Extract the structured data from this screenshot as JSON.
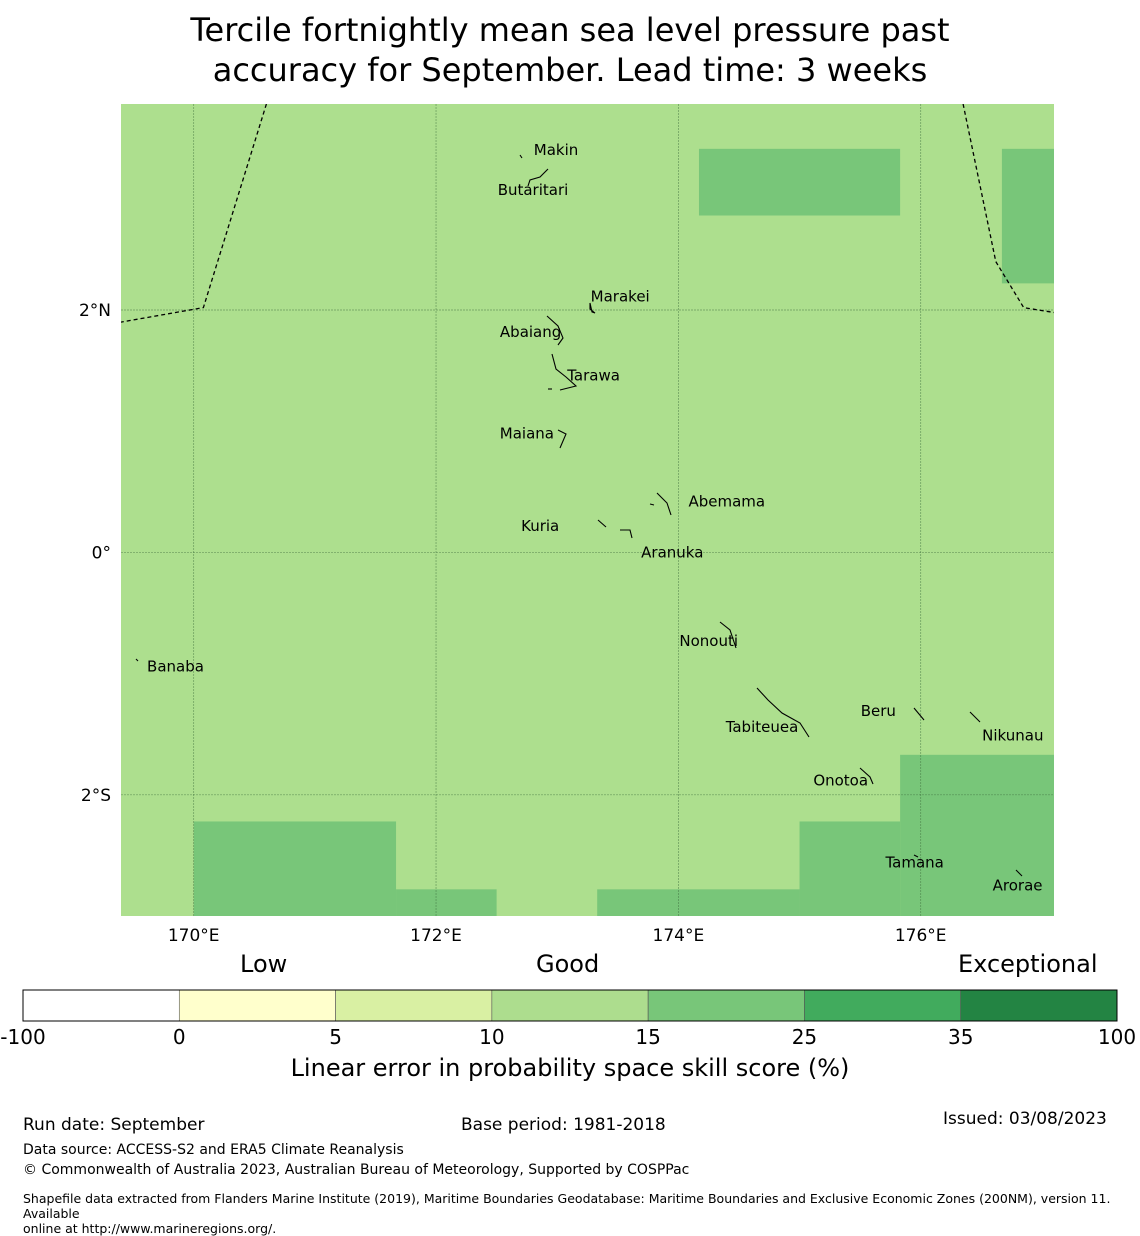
{
  "title": {
    "line1": "Tercile fortnightly mean sea level pressure past",
    "line2": "accuracy for September. Lead time: 3 weeks"
  },
  "map": {
    "extent": {
      "lon_min": 169.4,
      "lon_max": 177.1,
      "lat_min": -3.0,
      "lat_max": 3.7
    },
    "lon_ticks": [
      {
        "value": 170,
        "label": "170°E"
      },
      {
        "value": 172,
        "label": "172°E"
      },
      {
        "value": 174,
        "label": "174°E"
      },
      {
        "value": 176,
        "label": "176°E"
      }
    ],
    "lat_ticks": [
      {
        "value": 2,
        "label": "2°N"
      },
      {
        "value": 0,
        "label": "0°"
      },
      {
        "value": -2,
        "label": "2°S"
      }
    ],
    "background_color": "#addf8e",
    "cells": [
      {
        "lon0": 174.17,
        "lon1": 175.83,
        "lat0": 2.78,
        "lat1": 3.33,
        "color": "#78c679"
      },
      {
        "lon0": 176.67,
        "lon1": 177.1,
        "lat0": 2.22,
        "lat1": 3.33,
        "color": "#78c679"
      },
      {
        "lon0": 170.0,
        "lon1": 171.67,
        "lat0": -3.0,
        "lat1": -2.22,
        "color": "#78c679"
      },
      {
        "lon0": 171.67,
        "lon1": 172.5,
        "lat0": -3.0,
        "lat1": -2.78,
        "color": "#78c679"
      },
      {
        "lon0": 173.33,
        "lon1": 175.0,
        "lat0": -3.0,
        "lat1": -2.78,
        "color": "#78c679"
      },
      {
        "lon0": 175.0,
        "lon1": 175.83,
        "lat0": -3.0,
        "lat1": -2.22,
        "color": "#78c679"
      },
      {
        "lon0": 175.83,
        "lon1": 177.1,
        "lat0": -3.0,
        "lat1": -1.67,
        "color": "#78c679"
      }
    ],
    "islands": [
      {
        "name": "Makin",
        "lon": 172.99,
        "lat": 3.32
      },
      {
        "name": "Butaritari",
        "lon": 172.8,
        "lat": 2.99
      },
      {
        "name": "Marakei",
        "lon": 173.52,
        "lat": 2.11
      },
      {
        "name": "Abaiang",
        "lon": 172.78,
        "lat": 1.82
      },
      {
        "name": "Tarawa",
        "lon": 173.3,
        "lat": 1.46
      },
      {
        "name": "Maiana",
        "lon": 172.75,
        "lat": 0.98
      },
      {
        "name": "Abemama",
        "lon": 174.4,
        "lat": 0.42
      },
      {
        "name": "Kuria",
        "lon": 172.86,
        "lat": 0.22
      },
      {
        "name": "Aranuka",
        "lon": 173.95,
        "lat": -0.0
      },
      {
        "name": "Nonouti",
        "lon": 174.25,
        "lat": -0.73
      },
      {
        "name": "Banaba",
        "lon": 169.85,
        "lat": -0.94
      },
      {
        "name": "Beru",
        "lon": 175.65,
        "lat": -1.31
      },
      {
        "name": "Tabiteuea",
        "lon": 174.69,
        "lat": -1.44
      },
      {
        "name": "Nikunau",
        "lon": 176.76,
        "lat": -1.51
      },
      {
        "name": "Onotoa",
        "lon": 175.34,
        "lat": -1.88
      },
      {
        "name": "Tamana",
        "lon": 175.95,
        "lat": -2.56
      },
      {
        "name": "Arorae",
        "lon": 176.8,
        "lat": -2.75
      }
    ],
    "boundary_west": [
      [
        170.6,
        3.7
      ],
      [
        170.08,
        2.02
      ],
      [
        169.4,
        1.9
      ]
    ],
    "boundary_east": [
      [
        176.35,
        3.7
      ],
      [
        176.62,
        2.4
      ],
      [
        176.85,
        2.02
      ],
      [
        177.1,
        1.98
      ]
    ]
  },
  "legend": {
    "category_labels": {
      "low": "Low",
      "good": "Good",
      "exceptional": "Exceptional"
    },
    "bins": [
      {
        "from": -100,
        "to": 0,
        "color": "#ffffff"
      },
      {
        "from": 0,
        "to": 5,
        "color": "#ffffcc"
      },
      {
        "from": 5,
        "to": 10,
        "color": "#d9f0a3"
      },
      {
        "from": 10,
        "to": 15,
        "color": "#addd8e"
      },
      {
        "from": 15,
        "to": 25,
        "color": "#78c679"
      },
      {
        "from": 25,
        "to": 35,
        "color": "#41ab5d"
      },
      {
        "from": 35,
        "to": 100,
        "color": "#238443"
      }
    ],
    "tick_labels": [
      "-100",
      "0",
      "5",
      "10",
      "15",
      "25",
      "35",
      "100"
    ],
    "title": "Linear error in probability space skill score (%)"
  },
  "footer": {
    "run_date": "Run date: September",
    "base_period": "Base period: 1981-2018",
    "issued": "Issued: 03/08/2023",
    "data_source": "Data source: ACCESS-S2 and ERA5 Climate Reanalysis",
    "copyright": "© Commonwealth of Australia 2023, Australian Bureau of Meteorology, Supported by COSPPac",
    "shapefile_line1": "Shapefile data extracted from Flanders Marine Institute (2019), Maritime Boundaries Geodatabase: Maritime Boundaries and Exclusive Economic Zones (200NM), version 11. Available",
    "shapefile_line2": "online at http://www.marineregions.org/."
  }
}
